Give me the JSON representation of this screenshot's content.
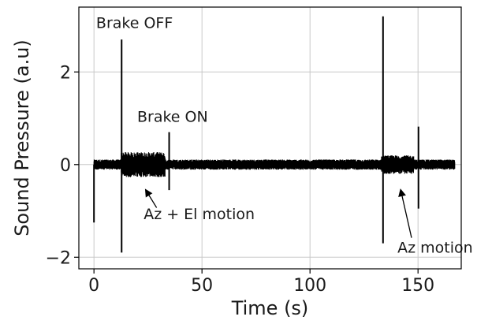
{
  "chart_data": {
    "type": "line",
    "xlabel": "Time (s)",
    "ylabel": "Sound Pressure (a.u)",
    "xlim": [
      -7,
      170
    ],
    "ylim": [
      -2.25,
      3.4
    ],
    "xticks": [
      0,
      50,
      100,
      150
    ],
    "yticks": [
      -2,
      0,
      2
    ],
    "ytick_labels": [
      "−2",
      "0",
      "2"
    ],
    "grid": true,
    "color": "#000000",
    "signal": {
      "name": "",
      "x_range": [
        0,
        167
      ],
      "baseline_amplitude": 0.11,
      "segments": [
        {
          "x_start": 12.5,
          "x_end": 33,
          "amplitude": 0.27
        },
        {
          "x_start": 133,
          "x_end": 148,
          "amplitude": 0.2
        }
      ]
    },
    "spikes": [
      {
        "x": 0,
        "y_min": -1.25,
        "y_max": 0.0
      },
      {
        "x": 12.8,
        "y_min": -1.9,
        "y_max": 2.7
      },
      {
        "x": 34.8,
        "y_min": -0.55,
        "y_max": 0.7
      },
      {
        "x": 133.8,
        "y_min": -1.7,
        "y_max": 3.2
      },
      {
        "x": 150.2,
        "y_min": -0.95,
        "y_max": 0.82
      }
    ],
    "annotations": [
      {
        "text": "Brake OFF",
        "x": 1,
        "y": 2.95
      },
      {
        "text": "Brake ON",
        "x": 20,
        "y": 0.92
      },
      {
        "text": "Az + El motion",
        "x": 23,
        "y": -1.18,
        "arrow_to": [
          24,
          -0.55
        ],
        "arrow_from": [
          29,
          -0.93
        ]
      },
      {
        "text": "Az motion",
        "x": 140.5,
        "y": -1.9,
        "arrow_to": [
          142,
          -0.55
        ],
        "arrow_from": [
          147,
          -1.58
        ]
      }
    ]
  }
}
